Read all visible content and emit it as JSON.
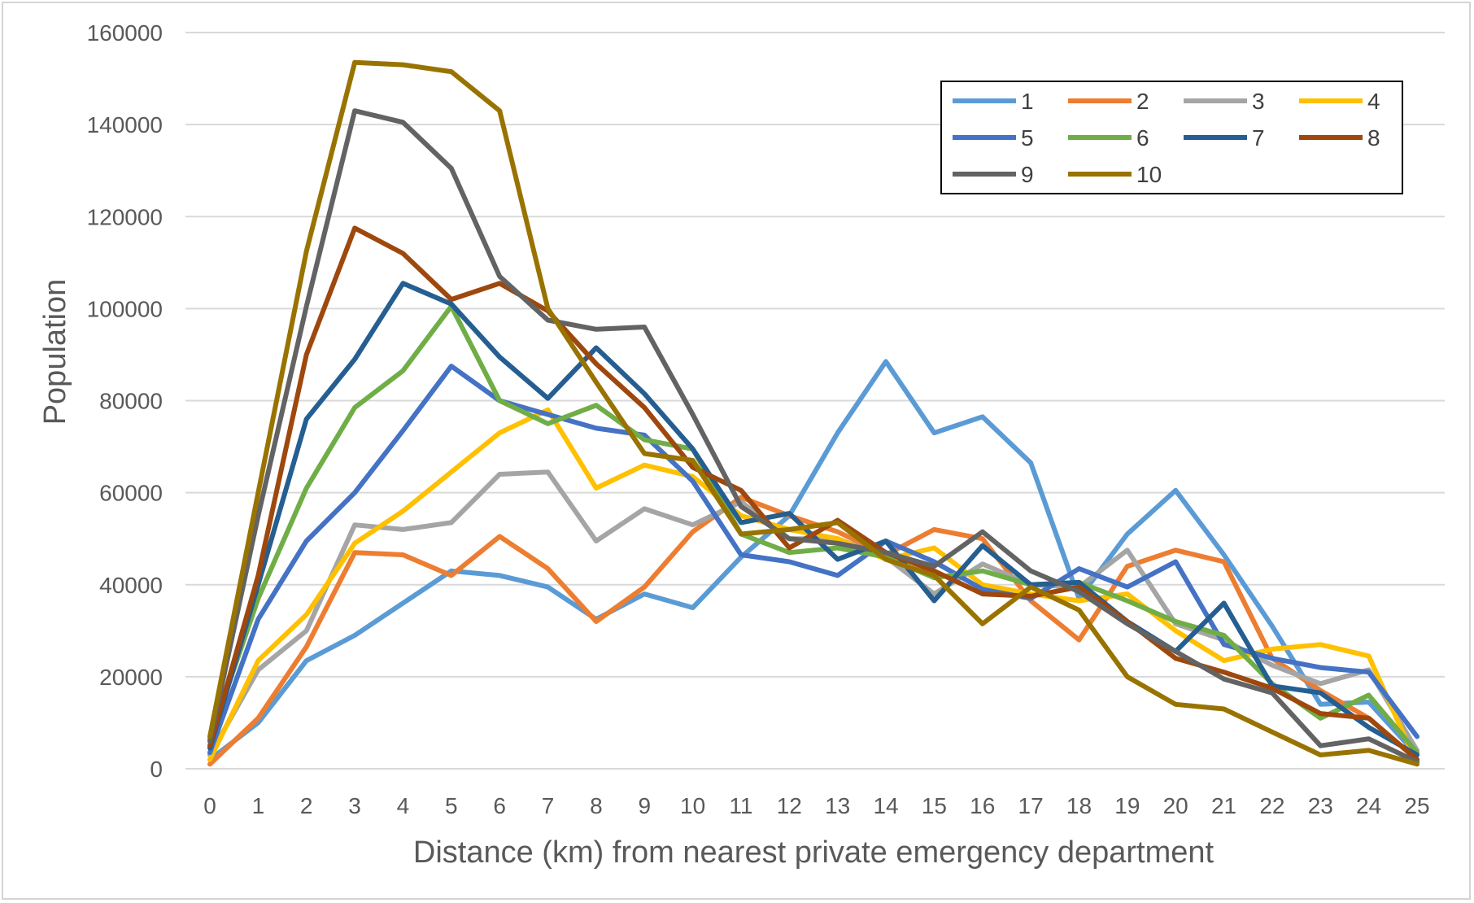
{
  "chart_data": {
    "type": "line",
    "title": "",
    "xlabel": "Distance (km) from nearest private emergency department",
    "ylabel": "Population",
    "x": [
      0,
      1,
      2,
      3,
      4,
      5,
      6,
      7,
      8,
      9,
      10,
      11,
      12,
      13,
      14,
      15,
      16,
      17,
      18,
      19,
      20,
      21,
      22,
      23,
      24,
      25
    ],
    "ylim": [
      0,
      160000
    ],
    "yticks": [
      0,
      20000,
      40000,
      60000,
      80000,
      100000,
      120000,
      140000,
      160000
    ],
    "grid": "horizontal",
    "legend_position": "top-right",
    "series": [
      {
        "name": "1",
        "color": "#5b9bd5",
        "values": [
          2000,
          10000,
          23500,
          29000,
          36000,
          43000,
          42000,
          39500,
          32500,
          38000,
          35000,
          46000,
          55000,
          73000,
          88500,
          73000,
          76500,
          66500,
          37000,
          51000,
          60500,
          46500,
          31000,
          14000,
          14500,
          3000
        ]
      },
      {
        "name": "2",
        "color": "#ed7d31",
        "values": [
          1000,
          11000,
          26500,
          47000,
          46500,
          42000,
          50500,
          43500,
          32000,
          39500,
          51500,
          59000,
          55000,
          51500,
          46500,
          52000,
          50000,
          36500,
          28000,
          44000,
          47500,
          45000,
          24000,
          17000,
          11000,
          2000
        ]
      },
      {
        "name": "3",
        "color": "#a5a5a5",
        "values": [
          3000,
          21500,
          30000,
          53000,
          52000,
          53500,
          64000,
          64500,
          49500,
          56500,
          53000,
          58000,
          50000,
          50000,
          46000,
          38000,
          44500,
          40000,
          39500,
          47500,
          31500,
          28000,
          22500,
          18500,
          21500,
          4000
        ]
      },
      {
        "name": "4",
        "color": "#ffc000",
        "values": [
          2000,
          23500,
          33500,
          49000,
          56000,
          64500,
          73000,
          78000,
          61000,
          66000,
          63500,
          55000,
          52000,
          50000,
          45500,
          48000,
          40000,
          38000,
          36500,
          38000,
          30000,
          23500,
          26000,
          27000,
          24500,
          1000
        ]
      },
      {
        "name": "5",
        "color": "#4472c4",
        "values": [
          3500,
          32500,
          49500,
          60000,
          73500,
          87500,
          80000,
          77000,
          74000,
          72500,
          62500,
          46500,
          45000,
          42000,
          49500,
          45000,
          39000,
          37000,
          43500,
          39500,
          45000,
          27000,
          24000,
          22000,
          21000,
          7000
        ]
      },
      {
        "name": "6",
        "color": "#70ad47",
        "values": [
          6500,
          37000,
          61000,
          78500,
          86500,
          100500,
          80000,
          75000,
          79000,
          71500,
          69500,
          51000,
          47000,
          48000,
          46000,
          41500,
          43000,
          40000,
          40500,
          36500,
          32000,
          29000,
          18500,
          11000,
          16000,
          3500
        ]
      },
      {
        "name": "7",
        "color": "#255e91",
        "values": [
          4500,
          40000,
          76000,
          89000,
          105500,
          101000,
          89500,
          80500,
          91500,
          81500,
          69500,
          53500,
          55500,
          45500,
          49500,
          36500,
          48500,
          40000,
          40500,
          32000,
          25500,
          36000,
          18000,
          16500,
          9000,
          3000
        ]
      },
      {
        "name": "8",
        "color": "#9e480e",
        "values": [
          5000,
          42000,
          90000,
          117500,
          112000,
          102000,
          105500,
          99500,
          88000,
          78500,
          65500,
          60500,
          48000,
          54000,
          47000,
          43000,
          38000,
          37500,
          39500,
          32000,
          24000,
          21000,
          17500,
          12000,
          11000,
          2000
        ]
      },
      {
        "name": "9",
        "color": "#636363",
        "values": [
          6000,
          55000,
          100500,
          143000,
          140500,
          130500,
          107000,
          97500,
          95500,
          96000,
          77000,
          57000,
          50000,
          49000,
          47000,
          44000,
          51500,
          43000,
          38500,
          31500,
          25500,
          19500,
          16500,
          5000,
          6500,
          1500
        ]
      },
      {
        "name": "10",
        "color": "#997300",
        "values": [
          7000,
          60000,
          112500,
          153500,
          153000,
          151500,
          143000,
          100000,
          84000,
          68500,
          67000,
          51000,
          52000,
          53500,
          45500,
          42000,
          31500,
          39500,
          34500,
          20000,
          14000,
          13000,
          8000,
          3000,
          4000,
          1000
        ]
      }
    ]
  }
}
